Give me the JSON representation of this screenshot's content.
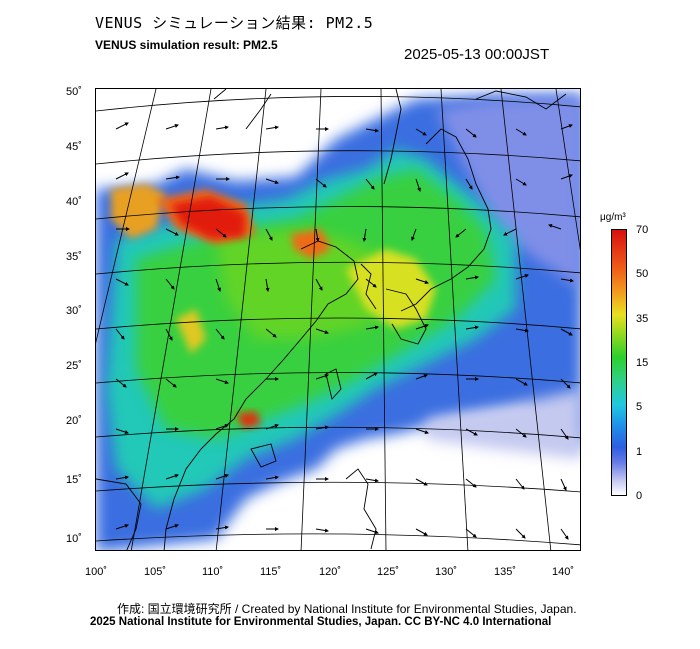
{
  "header": {
    "title_jp": "VENUS シミュレーション結果: PM2.5",
    "title_en": "VENUS simulation result: PM2.5",
    "timestamp": "2025-05-13 00:00JST"
  },
  "map": {
    "y_ticks": [
      "50˚",
      "45˚",
      "40˚",
      "35˚",
      "30˚",
      "25˚",
      "20˚",
      "15˚",
      "10˚"
    ],
    "x_ticks": [
      "100˚",
      "105˚",
      "110˚",
      "115˚",
      "120˚",
      "125˚",
      "130˚",
      "135˚",
      "140˚"
    ],
    "lat_range": [
      9,
      51
    ],
    "lon_range": [
      100,
      141
    ]
  },
  "colorbar": {
    "unit": "μg/m³",
    "ticks": [
      "70",
      "50",
      "35",
      "15",
      "5",
      "1",
      "0"
    ],
    "colors": [
      "#d81010",
      "#ee5a18",
      "#f2a020",
      "#e8e020",
      "#8ad820",
      "#2cd02c",
      "#20c8e0",
      "#1f8fe8",
      "#2e5de0",
      "#6a7ee6",
      "#c9cdf2",
      "#ffffff"
    ]
  },
  "footer": {
    "credit_1": "作成: 国立環境研究所 / Created by National Institute for Environmental Studies, Japan.",
    "credit_2": "2025 National Institute for Environmental Studies, Japan. CC BY-NC 4.0 International"
  }
}
